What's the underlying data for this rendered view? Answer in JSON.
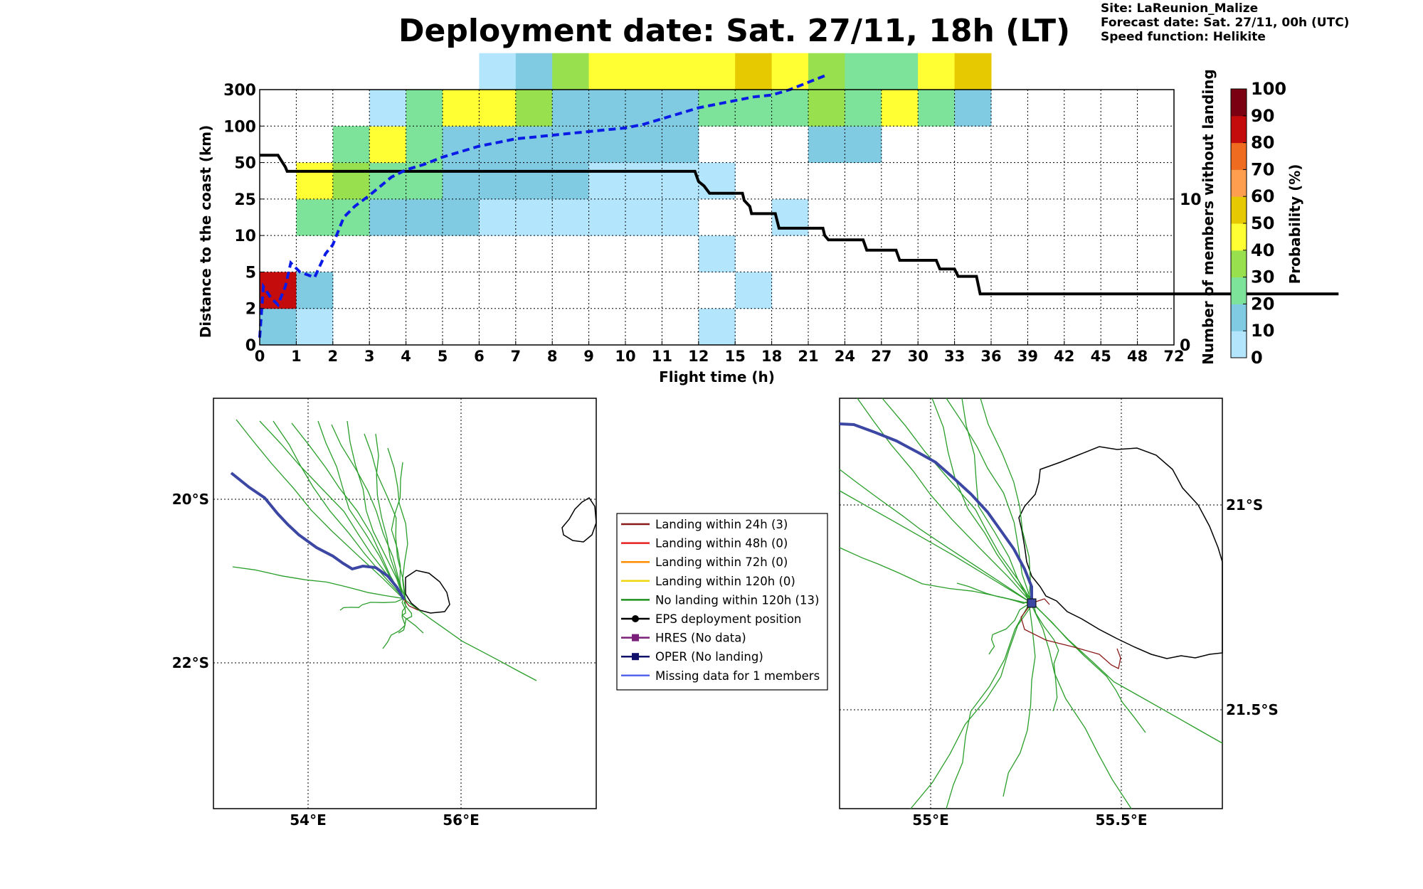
{
  "title": "Deployment date: Sat. 27/11, 18h (LT)",
  "meta": {
    "site": "Site: LaReunion_Malize",
    "forecast": "Forecast date: Sat. 27/11, 00h (UTC)",
    "speed": "Speed function: Helikite"
  },
  "colors": {
    "c0": "#b3e5fc",
    "c10": "#81cbe2",
    "c20": "#7ee39a",
    "c30": "#99e04e",
    "c40": "#ffff33",
    "c50": "#e6c900",
    "c60": "#ff9e4f",
    "c70": "#ef6b1f",
    "c80": "#c40c0c",
    "c90": "#7a0012",
    "black_line": "#000000",
    "blue_line": "#0a1be6",
    "oper": "#3b47a3",
    "members": "#2a9e2a",
    "landing24": "#8b1a1a"
  },
  "chart_data": [
    {
      "type": "heatmap",
      "xlabel": "Flight time (h)",
      "ylabel": "Distance to the coast (km)",
      "y2label": "Number of members without landing",
      "x_ticks": [
        "0",
        "1",
        "2",
        "3",
        "4",
        "5",
        "6",
        "7",
        "8",
        "9",
        "10",
        "11",
        "12",
        "15",
        "18",
        "21",
        "24",
        "27",
        "30",
        "33",
        "36",
        "39",
        "42",
        "45",
        "48",
        "72"
      ],
      "y_ticks": [
        "0",
        "2",
        "5",
        "10",
        "25",
        "50",
        "100",
        "300"
      ],
      "y2_ticks": [
        "0",
        "10"
      ],
      "colorbar": {
        "label": "Probability (%)",
        "ticks": [
          "0",
          "10",
          "20",
          "30",
          "40",
          "50",
          "60",
          "70",
          "80",
          "90",
          "100"
        ]
      },
      "cells": [
        {
          "x": 0,
          "y": 0,
          "p": 10
        },
        {
          "x": 0,
          "y": 1,
          "p": 80
        },
        {
          "x": 1,
          "y": 0,
          "p": 0
        },
        {
          "x": 1,
          "y": 1,
          "p": 10
        },
        {
          "x": 1,
          "y": 3,
          "p": 20
        },
        {
          "x": 1,
          "y": 4,
          "p": 40
        },
        {
          "x": 2,
          "y": 3,
          "p": 20
        },
        {
          "x": 2,
          "y": 4,
          "p": 30
        },
        {
          "x": 2,
          "y": 5,
          "p": 20
        },
        {
          "x": 3,
          "y": 3,
          "p": 10
        },
        {
          "x": 3,
          "y": 4,
          "p": 20
        },
        {
          "x": 3,
          "y": 5,
          "p": 40
        },
        {
          "x": 3,
          "y": 6,
          "p": 0
        },
        {
          "x": 4,
          "y": 3,
          "p": 10
        },
        {
          "x": 4,
          "y": 4,
          "p": 20
        },
        {
          "x": 4,
          "y": 5,
          "p": 20
        },
        {
          "x": 4,
          "y": 6,
          "p": 20
        },
        {
          "x": 5,
          "y": 3,
          "p": 10
        },
        {
          "x": 5,
          "y": 4,
          "p": 10
        },
        {
          "x": 5,
          "y": 5,
          "p": 10
        },
        {
          "x": 5,
          "y": 6,
          "p": 40
        },
        {
          "x": 6,
          "y": 3,
          "p": 0
        },
        {
          "x": 6,
          "y": 4,
          "p": 10
        },
        {
          "x": 6,
          "y": 5,
          "p": 10
        },
        {
          "x": 6,
          "y": 6,
          "p": 40
        },
        {
          "x": 6,
          "y": 7,
          "p": 0
        },
        {
          "x": 7,
          "y": 3,
          "p": 0
        },
        {
          "x": 7,
          "y": 4,
          "p": 10
        },
        {
          "x": 7,
          "y": 5,
          "p": 10
        },
        {
          "x": 7,
          "y": 6,
          "p": 30
        },
        {
          "x": 7,
          "y": 7,
          "p": 10
        },
        {
          "x": 8,
          "y": 3,
          "p": 0
        },
        {
          "x": 8,
          "y": 4,
          "p": 10
        },
        {
          "x": 8,
          "y": 5,
          "p": 10
        },
        {
          "x": 8,
          "y": 6,
          "p": 10
        },
        {
          "x": 8,
          "y": 7,
          "p": 30
        },
        {
          "x": 9,
          "y": 3,
          "p": 0
        },
        {
          "x": 9,
          "y": 4,
          "p": 0
        },
        {
          "x": 9,
          "y": 5,
          "p": 10
        },
        {
          "x": 9,
          "y": 6,
          "p": 10
        },
        {
          "x": 9,
          "y": 7,
          "p": 40
        },
        {
          "x": 10,
          "y": 3,
          "p": 0
        },
        {
          "x": 10,
          "y": 4,
          "p": 0
        },
        {
          "x": 10,
          "y": 5,
          "p": 10
        },
        {
          "x": 10,
          "y": 6,
          "p": 10
        },
        {
          "x": 10,
          "y": 7,
          "p": 40
        },
        {
          "x": 11,
          "y": 3,
          "p": 0
        },
        {
          "x": 11,
          "y": 4,
          "p": 0
        },
        {
          "x": 11,
          "y": 5,
          "p": 10
        },
        {
          "x": 11,
          "y": 6,
          "p": 10
        },
        {
          "x": 11,
          "y": 7,
          "p": 40
        },
        {
          "x": 12,
          "y": 0,
          "p": 0
        },
        {
          "x": 12,
          "y": 2,
          "p": 0
        },
        {
          "x": 12,
          "y": 4,
          "p": 0
        },
        {
          "x": 12,
          "y": 6,
          "p": 20
        },
        {
          "x": 12,
          "y": 7,
          "p": 40
        },
        {
          "x": 13,
          "y": 1,
          "p": 0
        },
        {
          "x": 13,
          "y": 6,
          "p": 20
        },
        {
          "x": 13,
          "y": 7,
          "p": 50
        },
        {
          "x": 14,
          "y": 3,
          "p": 0
        },
        {
          "x": 14,
          "y": 6,
          "p": 20
        },
        {
          "x": 14,
          "y": 7,
          "p": 40
        },
        {
          "x": 15,
          "y": 5,
          "p": 10
        },
        {
          "x": 15,
          "y": 6,
          "p": 30
        },
        {
          "x": 15,
          "y": 7,
          "p": 30
        },
        {
          "x": 16,
          "y": 5,
          "p": 10
        },
        {
          "x": 16,
          "y": 6,
          "p": 20
        },
        {
          "x": 16,
          "y": 7,
          "p": 20
        },
        {
          "x": 17,
          "y": 6,
          "p": 40
        },
        {
          "x": 17,
          "y": 7,
          "p": 20
        },
        {
          "x": 18,
          "y": 6,
          "p": 20
        },
        {
          "x": 18,
          "y": 7,
          "p": 40
        },
        {
          "x": 19,
          "y": 6,
          "p": 10
        },
        {
          "x": 19,
          "y": 7,
          "p": 50
        }
      ],
      "series": [
        {
          "style": "solid-black",
          "axis": "right",
          "points": [
            [
              0,
              13
            ],
            [
              0.5,
              13
            ],
            [
              0.6,
              12.6
            ],
            [
              0.7,
              12.2
            ],
            [
              0.75,
              11.9
            ],
            [
              11.9,
              11.9
            ],
            [
              12.0,
              11.2
            ],
            [
              12.15,
              10.9
            ],
            [
              12.3,
              10.4
            ],
            [
              13.2,
              10.4
            ],
            [
              13.25,
              9.9
            ],
            [
              13.4,
              9.5
            ],
            [
              13.45,
              9.0
            ],
            [
              14.1,
              9.0
            ],
            [
              14.2,
              8.0
            ],
            [
              15.4,
              8.0
            ],
            [
              15.45,
              7.5
            ],
            [
              15.55,
              7.2
            ],
            [
              16.5,
              7.2
            ],
            [
              16.6,
              6.5
            ],
            [
              17.4,
              6.5
            ],
            [
              17.5,
              5.8
            ],
            [
              18.5,
              5.8
            ],
            [
              18.6,
              5.2
            ],
            [
              19.0,
              5.2
            ],
            [
              19.1,
              4.7
            ],
            [
              19.6,
              4.7
            ],
            [
              19.7,
              3.5
            ],
            [
              29.5,
              3.5
            ]
          ]
        },
        {
          "style": "dashed-blue",
          "axis": "left",
          "points": [
            [
              0,
              0.2
            ],
            [
              0.1,
              1.6
            ],
            [
              0.3,
              1.3
            ],
            [
              0.5,
              1.1
            ],
            [
              0.7,
              1.6
            ],
            [
              0.85,
              2.25
            ],
            [
              1.1,
              2.0
            ],
            [
              1.5,
              1.85
            ],
            [
              1.8,
              2.5
            ],
            [
              2.0,
              2.75
            ],
            [
              2.3,
              3.5
            ],
            [
              2.6,
              3.8
            ],
            [
              3.0,
              4.1
            ],
            [
              3.3,
              4.35
            ],
            [
              3.6,
              4.6
            ],
            [
              4.0,
              4.8
            ],
            [
              4.5,
              4.95
            ],
            [
              5.0,
              5.15
            ],
            [
              5.5,
              5.3
            ],
            [
              6.0,
              5.45
            ],
            [
              6.5,
              5.55
            ],
            [
              7.0,
              5.65
            ],
            [
              7.5,
              5.7
            ],
            [
              8.0,
              5.75
            ],
            [
              8.5,
              5.8
            ],
            [
              9.0,
              5.85
            ],
            [
              9.5,
              5.9
            ],
            [
              10.0,
              5.95
            ],
            [
              10.5,
              6.05
            ],
            [
              11.0,
              6.2
            ],
            [
              11.5,
              6.35
            ],
            [
              12.0,
              6.5
            ],
            [
              12.5,
              6.6
            ],
            [
              13.0,
              6.7
            ],
            [
              13.5,
              6.8
            ],
            [
              14.0,
              6.85
            ],
            [
              14.5,
              7.0
            ],
            [
              15.0,
              7.2
            ],
            [
              15.5,
              7.4
            ]
          ]
        }
      ]
    }
  ],
  "map_left": {
    "lat_labels": [
      "20°S",
      "22°S"
    ],
    "lon_labels": [
      "54°E",
      "56°E"
    ]
  },
  "map_right": {
    "lat_labels": [
      "21°S",
      "21.5°S"
    ],
    "lon_labels": [
      "55°E",
      "55.5°E"
    ]
  },
  "legend": {
    "items": [
      {
        "label": "Landing within 24h (3)",
        "color": "#8b1a1a",
        "marker": "none"
      },
      {
        "label": "Landing within 48h (0)",
        "color": "#e82020",
        "marker": "none"
      },
      {
        "label": "Landing within 72h (0)",
        "color": "#ff8c00",
        "marker": "none"
      },
      {
        "label": "Landing within 120h (0)",
        "color": "#f2d40a",
        "marker": "none"
      },
      {
        "label": "No landing within 120h (13)",
        "color": "#1f8f1f",
        "marker": "none"
      },
      {
        "label": "EPS deployment position",
        "color": "#000000",
        "marker": "circle"
      },
      {
        "label": "HRES (No data)",
        "color": "#7a1f7a",
        "marker": "square"
      },
      {
        "label": "OPER (No landing)",
        "color": "#11116b",
        "marker": "square"
      },
      {
        "label": "Missing data for 1 members",
        "color": "#5566ee",
        "marker": "none"
      }
    ]
  }
}
